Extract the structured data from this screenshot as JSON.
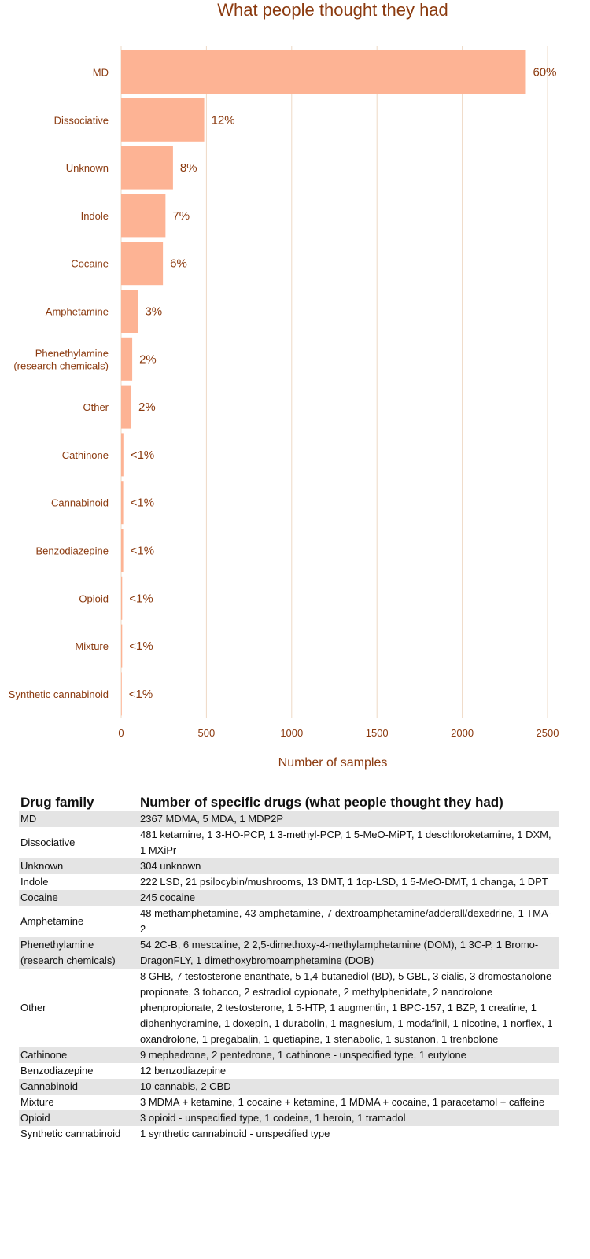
{
  "chart_data": {
    "type": "bar",
    "orientation": "horizontal",
    "title": "What people thought they had",
    "xlabel": "Number of samples",
    "ylabel": "",
    "xlim": [
      0,
      2500
    ],
    "xticks": [
      "0",
      "500",
      "1000",
      "1500",
      "2000",
      "2500"
    ],
    "grid": true,
    "bar_color": "#fdb394",
    "text_color": "#8b3a0f",
    "categories": [
      [
        "MD"
      ],
      [
        "Dissociative"
      ],
      [
        "Unknown"
      ],
      [
        "Indole"
      ],
      [
        "Cocaine"
      ],
      [
        "Amphetamine"
      ],
      [
        "Phenethylamine",
        "(research chemicals)"
      ],
      [
        "Other"
      ],
      [
        "Cathinone"
      ],
      [
        "Cannabinoid"
      ],
      [
        "Benzodiazepine"
      ],
      [
        "Opioid"
      ],
      [
        "Mixture"
      ],
      [
        "Synthetic cannabinoid"
      ]
    ],
    "values": [
      2373,
      487,
      304,
      260,
      245,
      99,
      65,
      60,
      13,
      12,
      12,
      6,
      6,
      1
    ],
    "labels": [
      "60%",
      "12%",
      "8%",
      "7%",
      "6%",
      "3%",
      "2%",
      "2%",
      "<1%",
      "<1%",
      "<1%",
      "<1%",
      "<1%",
      "<1%"
    ]
  },
  "table": {
    "headers": [
      "Drug family",
      "Number of specific drugs (what people thought they had)"
    ],
    "rows": [
      {
        "family": "MD",
        "drugs": "2367 MDMA, 5 MDA, 1 MDP2P"
      },
      {
        "family": "Dissociative",
        "drugs": "481 ketamine, 1 3-HO-PCP, 1 3-methyl-PCP, 1 5-MeO-MiPT, 1 deschloroketamine, 1 DXM, 1 MXiPr"
      },
      {
        "family": "Unknown",
        "drugs": "304 unknown"
      },
      {
        "family": "Indole",
        "drugs": "222 LSD, 21 psilocybin/mushrooms, 13 DMT, 1 1cp-LSD, 1 5-MeO-DMT, 1 changa, 1 DPT"
      },
      {
        "family": "Cocaine",
        "drugs": "245 cocaine"
      },
      {
        "family": "Amphetamine",
        "drugs": "48 methamphetamine, 43 amphetamine, 7 dextroamphetamine/adderall/dexedrine, 1 TMA-2"
      },
      {
        "family": "Phenethylamine (research chemicals)",
        "drugs": "54 2C-B, 6 mescaline, 2 2,5-dimethoxy-4-methylamphetamine (DOM), 1 3C-P, 1 Bromo-DragonFLY, 1 dimethoxybromoamphetamine (DOB)"
      },
      {
        "family": "Other",
        "drugs": "8 GHB, 7 testosterone enanthate, 5 1,4-butanediol (BD), 5 GBL, 3 cialis, 3 dromostanolone propionate, 3 tobacco, 2 estradiol cypionate, 2 methylphenidate, 2 nandrolone phenpropionate, 2 testosterone, 1 5-HTP, 1 augmentin, 1 BPC-157, 1 BZP, 1 creatine, 1 diphenhydramine, 1 doxepin, 1 durabolin, 1 magnesium, 1 modafinil, 1 nicotine, 1 norflex, 1 oxandrolone, 1 pregabalin, 1 quetiapine, 1 stenabolic, 1 sustanon, 1 trenbolone"
      },
      {
        "family": "Cathinone",
        "drugs": "9 mephedrone, 2 pentedrone, 1 cathinone - unspecified type, 1 eutylone"
      },
      {
        "family": "Benzodiazepine",
        "drugs": "12 benzodiazepine"
      },
      {
        "family": "Cannabinoid",
        "drugs": "10 cannabis, 2 CBD"
      },
      {
        "family": "Mixture",
        "drugs": "3 MDMA + ketamine, 1 cocaine + ketamine, 1 MDMA + cocaine, 1 paracetamol + caffeine"
      },
      {
        "family": "Opioid",
        "drugs": "3 opioid - unspecified type, 1 codeine, 1 heroin, 1 tramadol"
      },
      {
        "family": "Synthetic cannabinoid",
        "drugs": "1 synthetic cannabinoid - unspecified type"
      }
    ]
  }
}
